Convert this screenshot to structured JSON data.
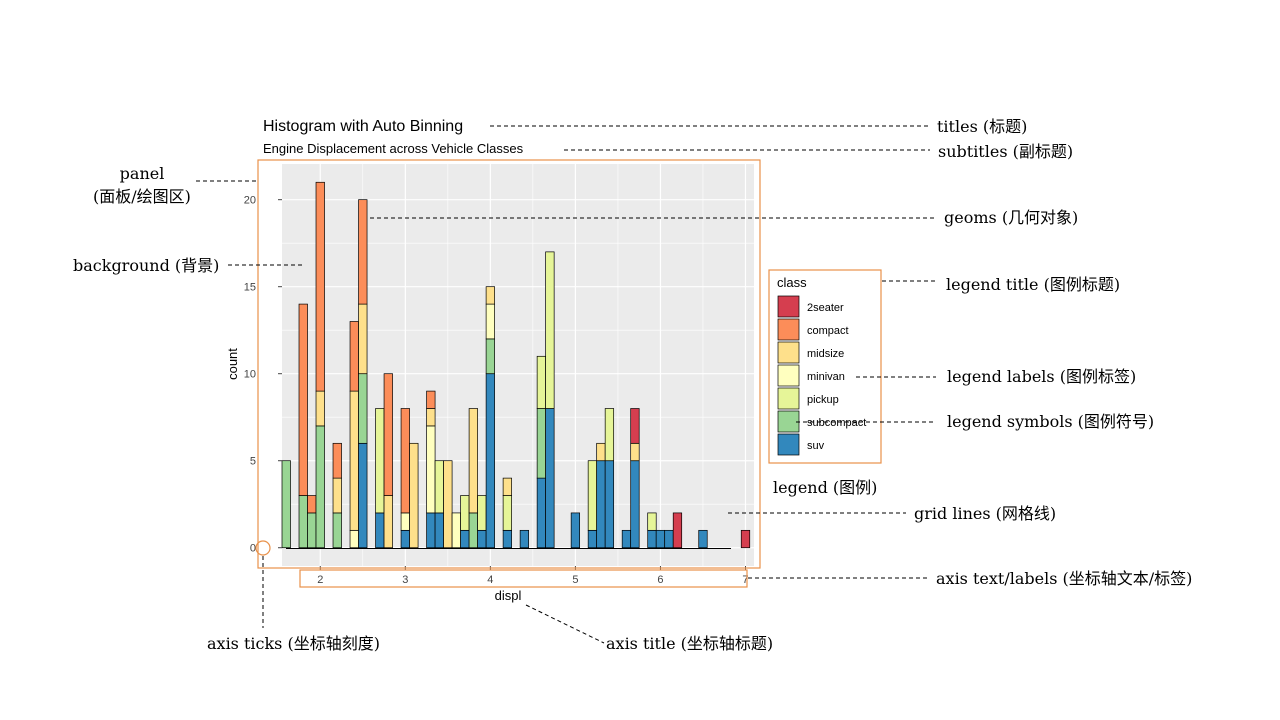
{
  "title": "Histogram with Auto Binning",
  "subtitle": "Engine Displacement across Vehicle Classes",
  "xlabel": "displ",
  "ylabel": "count",
  "legend": {
    "title": "class",
    "placement": "right",
    "labels": [
      "2seater",
      "compact",
      "midsize",
      "minivan",
      "pickup",
      "subcompact",
      "suv"
    ]
  },
  "colors": {
    "2seater": "#d53e4f",
    "compact": "#fc8d59",
    "midsize": "#fee08b",
    "minivan": "#ffffbf",
    "pickup": "#e6f598",
    "subcompact": "#99d594",
    "suv": "#3288bd",
    "panel_background": "#ebebeb",
    "gridline": "#ffffff",
    "annotation_box": "#e8914a"
  },
  "annotations": {
    "titles": "titles (标题)",
    "subtitles": "subtitles (副标题)",
    "panel": "panel",
    "panel_cn": "(面板/绘图区)",
    "geoms": "geoms (几何对象)",
    "background": "background (背景)",
    "legend_title": "legend title (图例标题)",
    "legend_labels": "legend labels (图例标签)",
    "legend_symbols": "legend symbols (图例符号)",
    "legend": "legend (图例)",
    "grid_lines": "grid lines (网格线)",
    "axis_text": "axis text/labels (坐标轴文本/标签)",
    "axis_ticks": "axis ticks (坐标轴刻度)",
    "axis_title": "axis title (坐标轴标题)"
  },
  "chart_data": {
    "type": "bar",
    "stacked": true,
    "grid": true,
    "x_ticks": [
      "2",
      "3",
      "4",
      "5",
      "6",
      "7"
    ],
    "y_ticks": [
      "0",
      "5",
      "10",
      "15",
      "20"
    ],
    "xlim": [
      1.55,
      7.1
    ],
    "ylim": [
      -1.05,
      22.05
    ],
    "bin_width": 0.1,
    "bins": [
      {
        "x": 1.6,
        "stack": [
          [
            "subcompact",
            5
          ]
        ]
      },
      {
        "x": 1.8,
        "stack": [
          [
            "subcompact",
            3
          ],
          [
            "compact",
            11
          ]
        ]
      },
      {
        "x": 1.9,
        "stack": [
          [
            "subcompact",
            2
          ],
          [
            "compact",
            1
          ]
        ]
      },
      {
        "x": 2.0,
        "stack": [
          [
            "subcompact",
            7
          ],
          [
            "midsize",
            2
          ],
          [
            "compact",
            12
          ]
        ]
      },
      {
        "x": 2.2,
        "stack": [
          [
            "subcompact",
            2
          ],
          [
            "midsize",
            2
          ],
          [
            "compact",
            2
          ]
        ]
      },
      {
        "x": 2.4,
        "stack": [
          [
            "minivan",
            1
          ],
          [
            "midsize",
            8
          ],
          [
            "compact",
            4
          ]
        ]
      },
      {
        "x": 2.5,
        "stack": [
          [
            "suv",
            6
          ],
          [
            "subcompact",
            4
          ],
          [
            "midsize",
            4
          ],
          [
            "compact",
            6
          ]
        ]
      },
      {
        "x": 2.7,
        "stack": [
          [
            "suv",
            2
          ],
          [
            "pickup",
            6
          ]
        ]
      },
      {
        "x": 2.8,
        "stack": [
          [
            "midsize",
            3
          ],
          [
            "compact",
            7
          ]
        ]
      },
      {
        "x": 3.0,
        "stack": [
          [
            "suv",
            1
          ],
          [
            "minivan",
            1
          ],
          [
            "compact",
            6
          ]
        ]
      },
      {
        "x": 3.1,
        "stack": [
          [
            "midsize",
            6
          ]
        ]
      },
      {
        "x": 3.3,
        "stack": [
          [
            "suv",
            2
          ],
          [
            "minivan",
            5
          ],
          [
            "midsize",
            1
          ],
          [
            "compact",
            1
          ]
        ]
      },
      {
        "x": 3.4,
        "stack": [
          [
            "suv",
            2
          ],
          [
            "pickup",
            3
          ]
        ]
      },
      {
        "x": 3.5,
        "stack": [
          [
            "midsize",
            5
          ]
        ]
      },
      {
        "x": 3.6,
        "stack": [
          [
            "minivan",
            2
          ]
        ]
      },
      {
        "x": 3.7,
        "stack": [
          [
            "suv",
            1
          ],
          [
            "pickup",
            2
          ]
        ]
      },
      {
        "x": 3.8,
        "stack": [
          [
            "subcompact",
            2
          ],
          [
            "midsize",
            6
          ]
        ]
      },
      {
        "x": 3.9,
        "stack": [
          [
            "suv",
            1
          ],
          [
            "pickup",
            2
          ]
        ]
      },
      {
        "x": 4.0,
        "stack": [
          [
            "suv",
            10
          ],
          [
            "subcompact",
            2
          ],
          [
            "minivan",
            2
          ],
          [
            "midsize",
            1
          ]
        ]
      },
      {
        "x": 4.2,
        "stack": [
          [
            "suv",
            1
          ],
          [
            "pickup",
            2
          ],
          [
            "midsize",
            1
          ]
        ]
      },
      {
        "x": 4.4,
        "stack": [
          [
            "suv",
            1
          ]
        ]
      },
      {
        "x": 4.6,
        "stack": [
          [
            "suv",
            4
          ],
          [
            "subcompact",
            4
          ],
          [
            "pickup",
            3
          ]
        ]
      },
      {
        "x": 4.7,
        "stack": [
          [
            "suv",
            8
          ],
          [
            "pickup",
            9
          ]
        ]
      },
      {
        "x": 5.0,
        "stack": [
          [
            "suv",
            2
          ]
        ]
      },
      {
        "x": 5.2,
        "stack": [
          [
            "suv",
            1
          ],
          [
            "pickup",
            4
          ]
        ]
      },
      {
        "x": 5.3,
        "stack": [
          [
            "suv",
            5
          ],
          [
            "midsize",
            1
          ]
        ]
      },
      {
        "x": 5.4,
        "stack": [
          [
            "suv",
            5
          ],
          [
            "pickup",
            3
          ]
        ]
      },
      {
        "x": 5.6,
        "stack": [
          [
            "suv",
            1
          ]
        ]
      },
      {
        "x": 5.7,
        "stack": [
          [
            "suv",
            5
          ],
          [
            "midsize",
            1
          ],
          [
            "2seater",
            2
          ]
        ]
      },
      {
        "x": 5.9,
        "stack": [
          [
            "suv",
            1
          ],
          [
            "pickup",
            1
          ]
        ]
      },
      {
        "x": 6.0,
        "stack": [
          [
            "suv",
            1
          ]
        ]
      },
      {
        "x": 6.1,
        "stack": [
          [
            "suv",
            1
          ]
        ]
      },
      {
        "x": 6.2,
        "stack": [
          [
            "2seater",
            2
          ]
        ]
      },
      {
        "x": 6.5,
        "stack": [
          [
            "suv",
            1
          ]
        ]
      },
      {
        "x": 7.0,
        "stack": [
          [
            "2seater",
            1
          ]
        ]
      }
    ]
  }
}
